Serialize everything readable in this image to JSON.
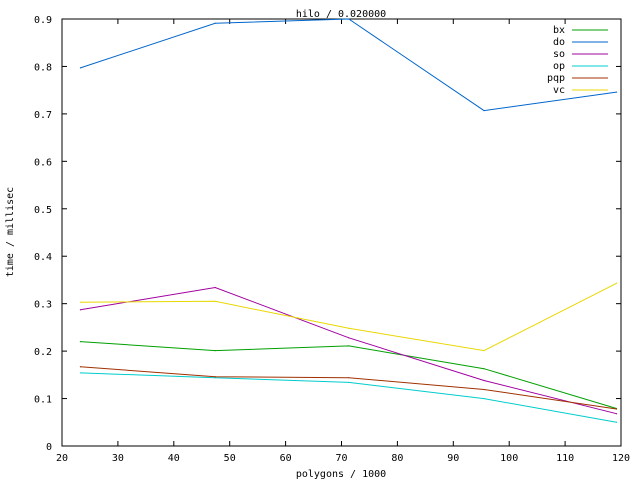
{
  "chart_data": {
    "type": "line",
    "title": "hilo / 0.020000",
    "xlabel": "polygons / 1000",
    "ylabel": "time / millisec",
    "xlim": [
      20,
      120
    ],
    "ylim": [
      0,
      0.9
    ],
    "xticks": [
      "20",
      "30",
      "40",
      "50",
      "60",
      "70",
      "80",
      "90",
      "100",
      "110",
      "120"
    ],
    "yticks": [
      "0",
      "0.1",
      "0.2",
      "0.3",
      "0.4",
      "0.5",
      "0.6",
      "0.7",
      "0.8",
      "0.9"
    ],
    "grid": false,
    "legend_position": "top-right",
    "x": [
      23.3,
      47.4,
      71.3,
      95.5,
      119.2
    ],
    "series": [
      {
        "name": "bx",
        "color": "#00a000",
        "values": [
          0.22,
          0.201,
          0.211,
          0.163,
          0.079
        ]
      },
      {
        "name": "do",
        "color": "#0066cc",
        "values": [
          0.797,
          0.891,
          0.9,
          0.707,
          0.746
        ]
      },
      {
        "name": "so",
        "color": "#a000a0",
        "values": [
          0.287,
          0.334,
          0.228,
          0.138,
          0.068
        ]
      },
      {
        "name": "op",
        "color": "#00cccc",
        "values": [
          0.154,
          0.144,
          0.134,
          0.1,
          0.05
        ]
      },
      {
        "name": "pqp",
        "color": "#a03000",
        "values": [
          0.167,
          0.146,
          0.144,
          0.119,
          0.078
        ]
      },
      {
        "name": "vc",
        "color": "#e8d800",
        "values": [
          0.303,
          0.305,
          0.248,
          0.201,
          0.343
        ]
      }
    ]
  }
}
